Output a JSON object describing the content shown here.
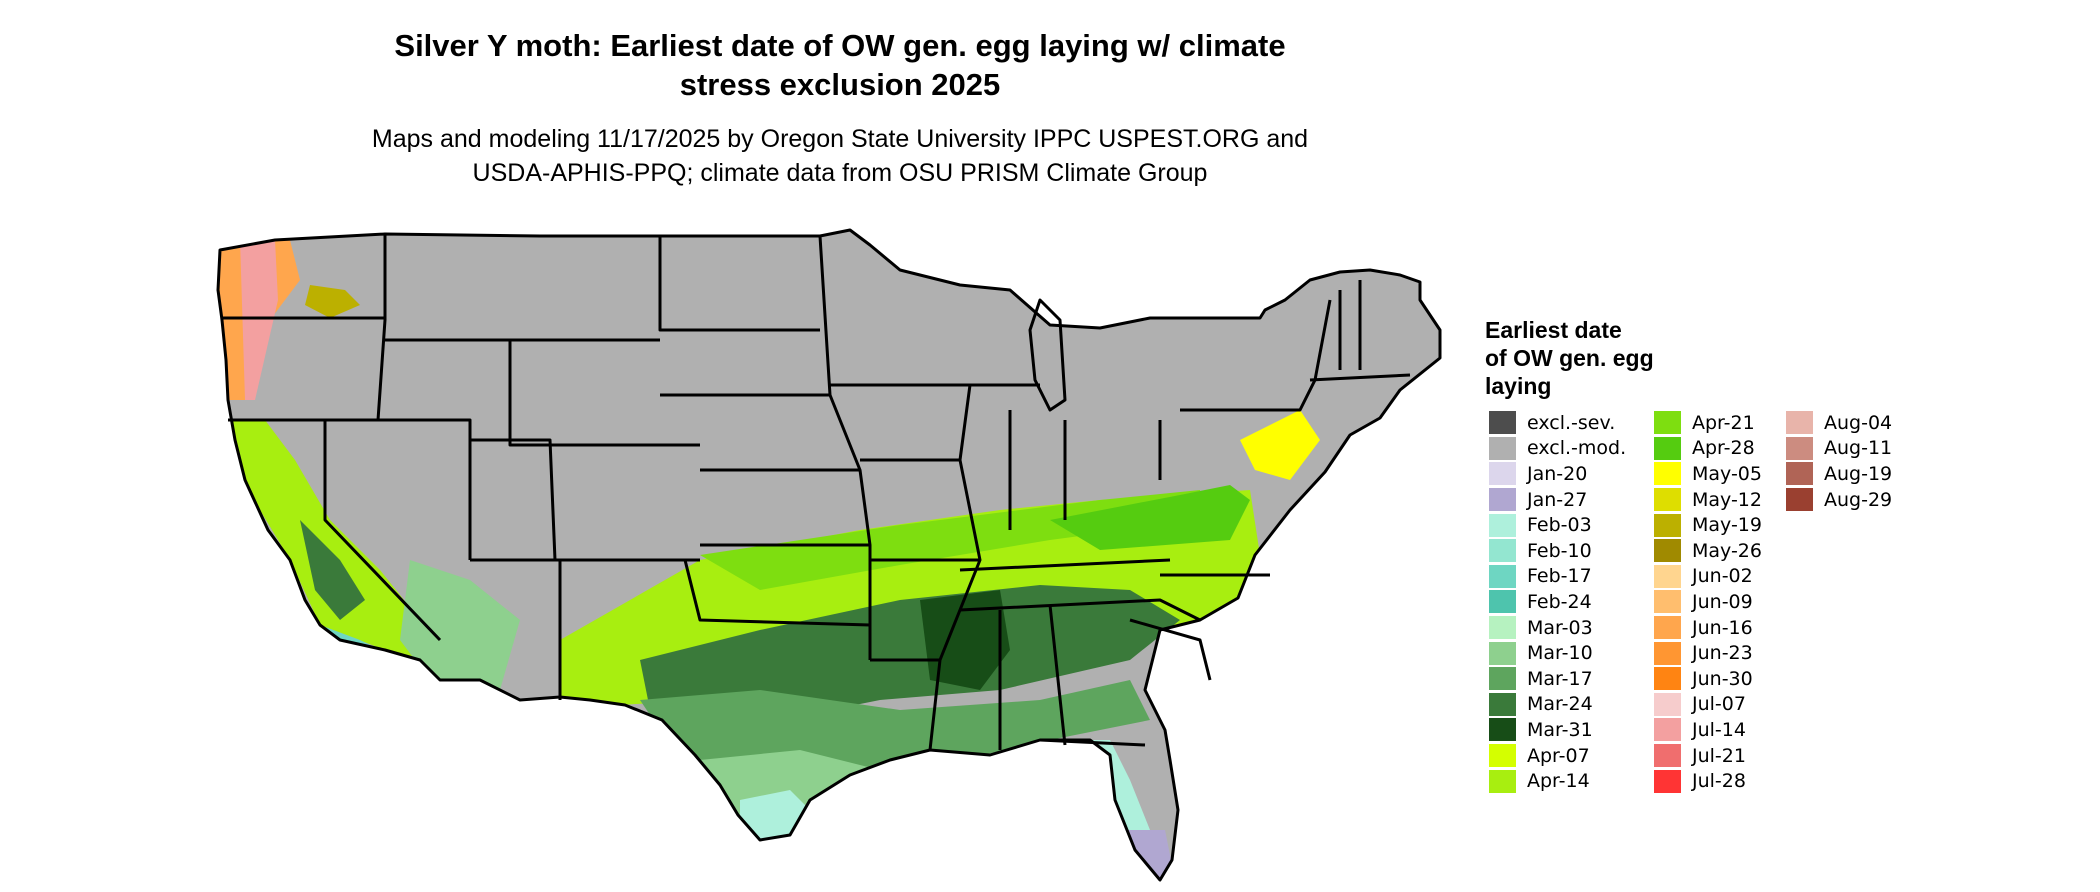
{
  "title_line1": "Silver Y moth: Earliest date of OW gen. egg laying w/ climate",
  "title_line2": "stress exclusion 2025",
  "subtitle_line1": "Maps and modeling 11/17/2025 by Oregon State University IPPC USPEST.ORG and",
  "subtitle_line2": "USDA-APHIS-PPQ; climate data from OSU PRISM Climate Group",
  "legend": {
    "title_line1": "Earliest date",
    "title_line2": "of OW gen. egg",
    "title_line3": "laying",
    "columns": [
      [
        {
          "label": "excl.-sev.",
          "color": "#4d4d4d"
        },
        {
          "label": "excl.-mod.",
          "color": "#b0b0b0"
        },
        {
          "label": "Jan-20",
          "color": "#dcd6ec"
        },
        {
          "label": "Jan-27",
          "color": "#b0a7d1"
        },
        {
          "label": "Feb-03",
          "color": "#aef0dc"
        },
        {
          "label": "Feb-10",
          "color": "#93e6d0"
        },
        {
          "label": "Feb-17",
          "color": "#6ed6c2"
        },
        {
          "label": "Feb-24",
          "color": "#4ec4ad"
        },
        {
          "label": "Mar-03",
          "color": "#b6f2c0"
        },
        {
          "label": "Mar-10",
          "color": "#8ed08e"
        },
        {
          "label": "Mar-17",
          "color": "#5ea55e"
        },
        {
          "label": "Mar-24",
          "color": "#3a7a3a"
        },
        {
          "label": "Mar-31",
          "color": "#174d17"
        },
        {
          "label": "Apr-07",
          "color": "#d4ff00"
        },
        {
          "label": "Apr-14",
          "color": "#a8ee10"
        }
      ],
      [
        {
          "label": "Apr-21",
          "color": "#7ede10"
        },
        {
          "label": "Apr-28",
          "color": "#55cc10"
        },
        {
          "label": "May-05",
          "color": "#ffff00"
        },
        {
          "label": "May-12",
          "color": "#dede00"
        },
        {
          "label": "May-19",
          "color": "#bcb000"
        },
        {
          "label": "May-26",
          "color": "#a08a00"
        },
        {
          "label": "Jun-02",
          "color": "#ffd58f"
        },
        {
          "label": "Jun-09",
          "color": "#ffbe6e"
        },
        {
          "label": "Jun-16",
          "color": "#ffa64d"
        },
        {
          "label": "Jun-23",
          "color": "#ff9632"
        },
        {
          "label": "Jun-30",
          "color": "#ff8412"
        },
        {
          "label": "Jul-07",
          "color": "#f6cccc"
        },
        {
          "label": "Jul-14",
          "color": "#f3a0a0"
        },
        {
          "label": "Jul-21",
          "color": "#f06e6e"
        },
        {
          "label": "Jul-28",
          "color": "#ff3434"
        }
      ],
      [
        {
          "label": "Aug-04",
          "color": "#e8b4aa"
        },
        {
          "label": "Aug-11",
          "color": "#cc8c80"
        },
        {
          "label": "Aug-19",
          "color": "#b06456"
        },
        {
          "label": "Aug-29",
          "color": "#9a4030"
        }
      ]
    ]
  }
}
